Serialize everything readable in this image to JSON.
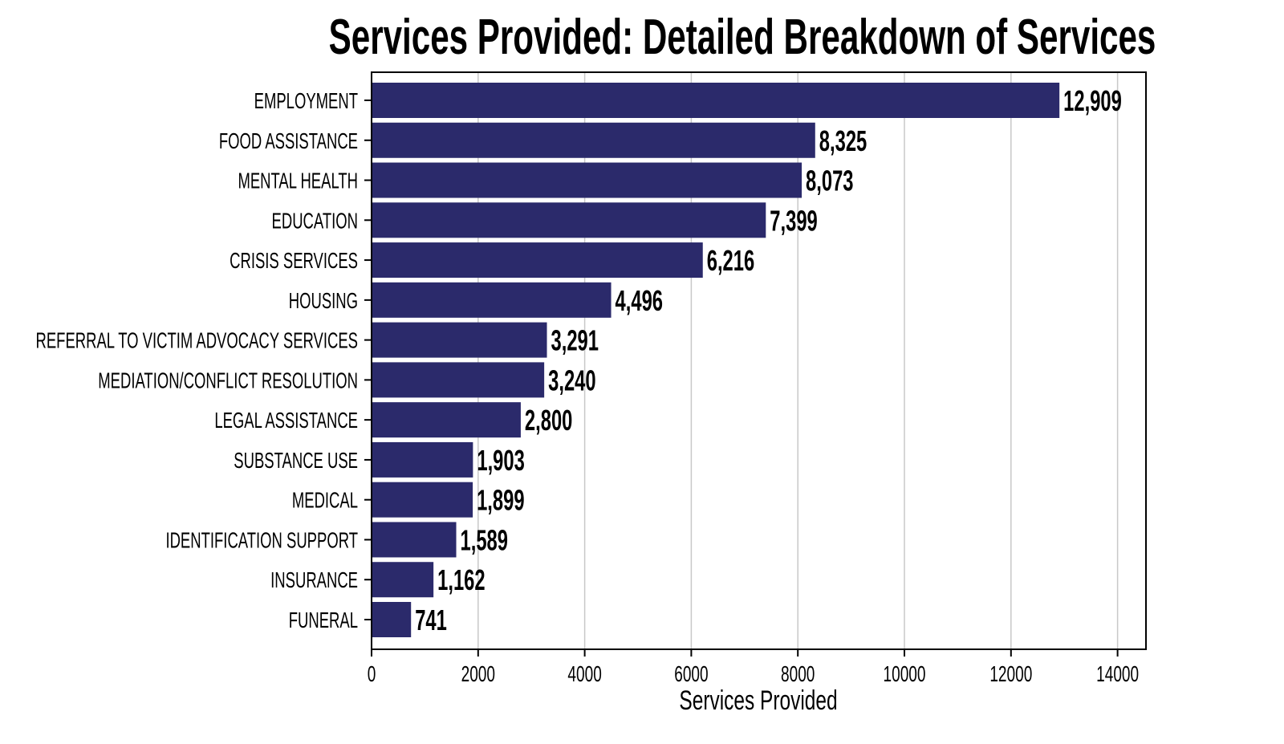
{
  "chart_data": {
    "type": "bar",
    "orientation": "horizontal",
    "title": "Services Provided: Detailed Breakdown of Services",
    "xlabel": "Services Provided",
    "ylabel": "",
    "categories": [
      "EMPLOYMENT",
      "FOOD ASSISTANCE",
      "MENTAL HEALTH",
      "EDUCATION",
      "CRISIS SERVICES",
      "HOUSING",
      "REFERRAL TO VICTIM ADVOCACY SERVICES",
      "MEDIATION/CONFLICT RESOLUTION",
      "LEGAL ASSISTANCE",
      "SUBSTANCE USE",
      "MEDICAL",
      "IDENTIFICATION SUPPORT",
      "INSURANCE",
      "FUNERAL"
    ],
    "values": [
      12909,
      8325,
      8073,
      7399,
      6216,
      4496,
      3291,
      3240,
      2800,
      1903,
      1899,
      1589,
      1162,
      741
    ],
    "value_labels": [
      "12,909",
      "8,325",
      "8,073",
      "7,399",
      "6,216",
      "4,496",
      "3,291",
      "3,240",
      "2,800",
      "1,903",
      "1,899",
      "1,589",
      "1,162",
      "741"
    ],
    "xticks": [
      0,
      2000,
      4000,
      6000,
      8000,
      10000,
      12000,
      14000
    ],
    "xtick_labels": [
      "0",
      "2000",
      "4000",
      "6000",
      "8000",
      "10000",
      "12000",
      "14000"
    ],
    "xlim": [
      0,
      14533
    ],
    "grid": "x",
    "legend": "none",
    "bar_color": "#2b2a6b"
  }
}
